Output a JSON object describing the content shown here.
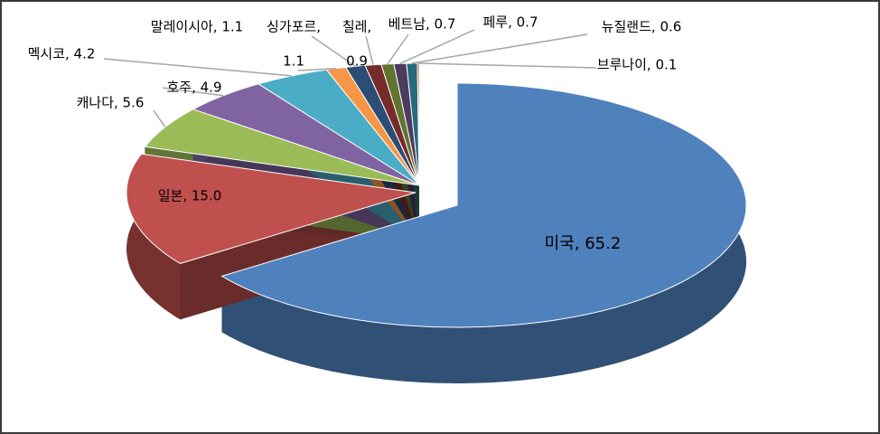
{
  "chart_data": {
    "type": "pie3d",
    "labels": [
      [
        "미국, 65.2"
      ],
      [
        "일본, 15.0"
      ],
      [
        "캐나다, 5.6"
      ],
      [
        "호주, 4.9"
      ],
      [
        "멕시코, 4.2"
      ],
      [
        "말레이시아, 1.1"
      ],
      [
        "싱가포르,",
        "1.1"
      ],
      [
        "칠레,",
        "0.9"
      ],
      [
        "베트남, 0.7"
      ],
      [
        "페루, 0.7"
      ],
      [
        "뉴질랜드, 0.6"
      ],
      [
        "브루나이, 0.1"
      ]
    ],
    "values": [
      65.2,
      15.0,
      5.6,
      4.9,
      4.2,
      1.1,
      1.1,
      0.9,
      0.7,
      0.7,
      0.6,
      0.1
    ],
    "colors": [
      "#4f81bd",
      "#c0504d",
      "#9bbb59",
      "#8064a2",
      "#4bacc6",
      "#f79646",
      "#2c4d75",
      "#772c2a",
      "#5f7530",
      "#4d3b62",
      "#276a7c",
      "#b65708"
    ]
  }
}
